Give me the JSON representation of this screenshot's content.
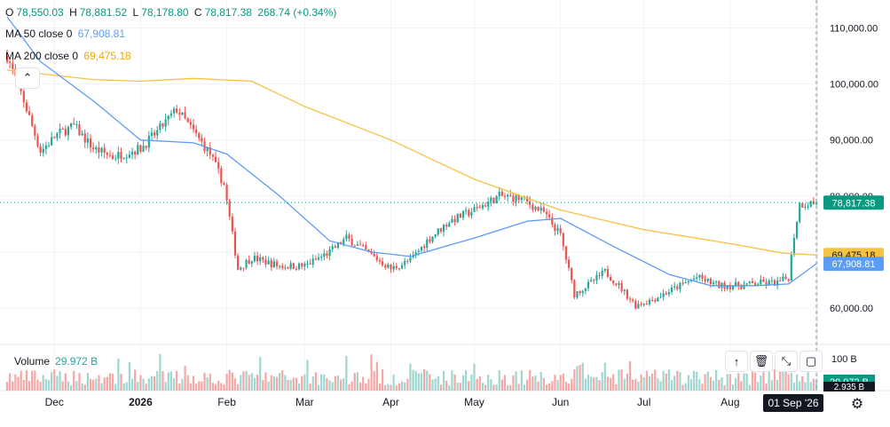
{
  "legend": {
    "ohlc": {
      "o_label": "O",
      "o_value": "78,550.03",
      "h_label": "H",
      "h_value": "78,881.52",
      "l_label": "L",
      "l_value": "78,178.80",
      "c_label": "C",
      "c_value": "78,817.38",
      "change": "268.74 (+0.34%)"
    },
    "ma50": {
      "label": "MA 50 close 0",
      "value": "67,908.81"
    },
    "ma200": {
      "label": "MA 200 close 0",
      "value": "69,475.18"
    }
  },
  "volume": {
    "label": "Volume",
    "value": "29.972 B",
    "axis_label": "100 B",
    "badge_value": "29.972 B",
    "badge_value2": "2.935 B"
  },
  "price_badges": {
    "last": "78,817.38",
    "ma200": "69,475.18",
    "ma50": "67,908.81"
  },
  "crosshair_date": "01 Sep '26",
  "colors": {
    "up": "#26a69a",
    "down": "#ef5350",
    "ma50": "#5b9cf6",
    "ma200": "#f5c242",
    "last_badge": "#089981"
  },
  "icons": {
    "collapse": "chevron-up-icon",
    "scroll_top": "arrow-up-icon",
    "delete": "trash-icon",
    "collapse_pane": "collapse-icon",
    "maximize": "maximize-icon",
    "settings": "gear-icon"
  },
  "chart_data": {
    "type": "candlestick",
    "y_ticks": [
      "110,000.00",
      "100,000.00",
      "90,000.00",
      "80,000.00",
      "60,000.00"
    ],
    "y_tick_values": [
      110000,
      100000,
      90000,
      80000,
      60000
    ],
    "ylim": [
      53500,
      115000
    ],
    "x_ticks": [
      "Dec",
      "2026",
      "Feb",
      "Mar",
      "Apr",
      "May",
      "Jun",
      "Jul",
      "Aug"
    ],
    "x_tick_dates": [
      "2025-12-01",
      "2026-01-01",
      "2026-02-01",
      "2026-03-01",
      "2026-04-01",
      "2026-05-01",
      "2026-06-01",
      "2026-07-01",
      "2026-08-01"
    ],
    "x_range": [
      "2025-11-14",
      "2026-09-01"
    ],
    "anchors": [
      [
        "2025-11-14",
        105000
      ],
      [
        "2025-11-20",
        97000
      ],
      [
        "2025-11-26",
        88000
      ],
      [
        "2025-12-02",
        91000
      ],
      [
        "2025-12-08",
        92500
      ],
      [
        "2025-12-15",
        88500
      ],
      [
        "2025-12-22",
        87000
      ],
      [
        "2026-01-01",
        88500
      ],
      [
        "2026-01-07",
        91500
      ],
      [
        "2026-01-14",
        95500
      ],
      [
        "2026-01-20",
        91500
      ],
      [
        "2026-01-26",
        87500
      ],
      [
        "2026-01-31",
        82000
      ],
      [
        "2026-02-05",
        67000
      ],
      [
        "2026-02-10",
        69000
      ],
      [
        "2026-02-20",
        67500
      ],
      [
        "2026-03-01",
        67500
      ],
      [
        "2026-03-10",
        70000
      ],
      [
        "2026-03-16",
        72500
      ],
      [
        "2026-03-22",
        70500
      ],
      [
        "2026-04-01",
        67000
      ],
      [
        "2026-04-08",
        68500
      ],
      [
        "2026-04-14",
        72000
      ],
      [
        "2026-04-22",
        75500
      ],
      [
        "2026-05-01",
        77500
      ],
      [
        "2026-05-10",
        80000
      ],
      [
        "2026-05-18",
        79500
      ],
      [
        "2026-05-26",
        77000
      ],
      [
        "2026-06-01",
        73000
      ],
      [
        "2026-06-06",
        62500
      ],
      [
        "2026-06-12",
        64500
      ],
      [
        "2026-06-17",
        66500
      ],
      [
        "2026-06-22",
        64000
      ],
      [
        "2026-06-28",
        60500
      ],
      [
        "2026-07-04",
        61500
      ],
      [
        "2026-07-12",
        63500
      ],
      [
        "2026-07-20",
        65500
      ],
      [
        "2026-07-28",
        64000
      ],
      [
        "2026-08-05",
        64000
      ],
      [
        "2026-08-12",
        64500
      ],
      [
        "2026-08-18",
        64500
      ],
      [
        "2026-08-22",
        65500
      ],
      [
        "2026-08-24",
        73000
      ],
      [
        "2026-08-26",
        78500
      ],
      [
        "2026-09-01",
        78817
      ]
    ],
    "ma50": [
      [
        "2025-11-14",
        112000
      ],
      [
        "2025-11-26",
        104000
      ],
      [
        "2025-12-15",
        97000
      ],
      [
        "2026-01-01",
        90000
      ],
      [
        "2026-01-20",
        89500
      ],
      [
        "2026-02-01",
        87500
      ],
      [
        "2026-02-20",
        80000
      ],
      [
        "2026-03-10",
        72000
      ],
      [
        "2026-03-25",
        70000
      ],
      [
        "2026-04-08",
        69200
      ],
      [
        "2026-05-01",
        72500
      ],
      [
        "2026-05-20",
        75500
      ],
      [
        "2026-06-01",
        76000
      ],
      [
        "2026-06-20",
        71000
      ],
      [
        "2026-07-10",
        66000
      ],
      [
        "2026-07-25",
        64000
      ],
      [
        "2026-08-10",
        64000
      ],
      [
        "2026-08-22",
        64300
      ],
      [
        "2026-09-01",
        67908
      ]
    ],
    "ma200": [
      [
        "2025-11-14",
        102500
      ],
      [
        "2025-12-15",
        100800
      ],
      [
        "2026-01-01",
        100500
      ],
      [
        "2026-01-20",
        101000
      ],
      [
        "2026-02-10",
        100500
      ],
      [
        "2026-03-01",
        96000
      ],
      [
        "2026-04-01",
        90000
      ],
      [
        "2026-05-01",
        83000
      ],
      [
        "2026-06-01",
        77500
      ],
      [
        "2026-07-01",
        74000
      ],
      [
        "2026-08-01",
        71500
      ],
      [
        "2026-08-20",
        69800
      ],
      [
        "2026-09-01",
        69475
      ]
    ],
    "last_price": 78817.38,
    "grid": true,
    "volume_ylim": [
      0,
      100
    ]
  }
}
